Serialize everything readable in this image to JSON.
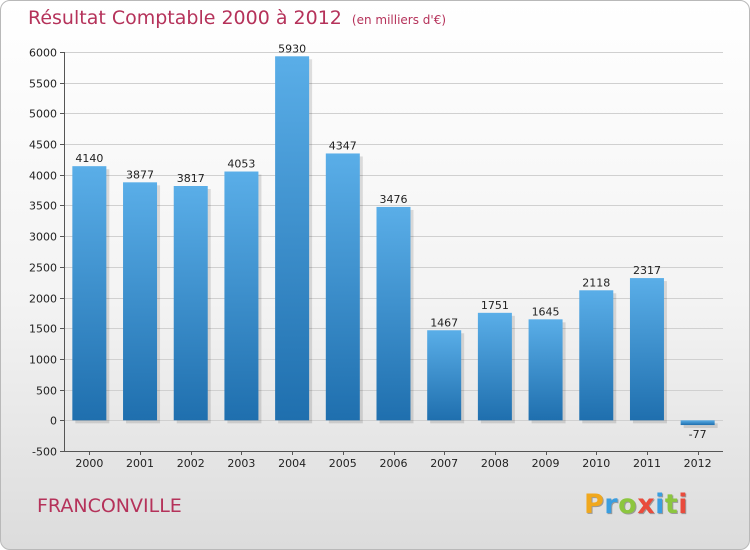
{
  "chart_data": {
    "type": "bar",
    "title": "Résultat Comptable 2000 à 2012",
    "unit_note": "(en milliers d'€)",
    "categories": [
      "2000",
      "2001",
      "2002",
      "2003",
      "2004",
      "2005",
      "2006",
      "2007",
      "2008",
      "2009",
      "2010",
      "2011",
      "2012"
    ],
    "values": [
      4140,
      3877,
      3817,
      4053,
      5930,
      4347,
      3476,
      1467,
      1751,
      1645,
      2118,
      2317,
      -77
    ],
    "ylim": [
      -500,
      6000
    ],
    "yticks": [
      -500,
      0,
      500,
      1000,
      1500,
      2000,
      2500,
      3000,
      3500,
      4000,
      4500,
      5000,
      5500,
      6000
    ],
    "grid": true,
    "xlabel": "",
    "ylabel": ""
  },
  "location": "FRANCONVILLE",
  "logo": {
    "letters": [
      "P",
      "r",
      "o",
      "x",
      "i",
      "t",
      "i"
    ],
    "colors": [
      "#f0a81e",
      "#3a9ee0",
      "#8cc63f",
      "#e94b3c",
      "#3a9ee0",
      "#8cc63f",
      "#e94b3c"
    ]
  },
  "colors": {
    "bar_top": "#5aaee8",
    "bar_bottom": "#1f6fae",
    "title": "#b5325a",
    "grid": "#d0d0d0"
  }
}
